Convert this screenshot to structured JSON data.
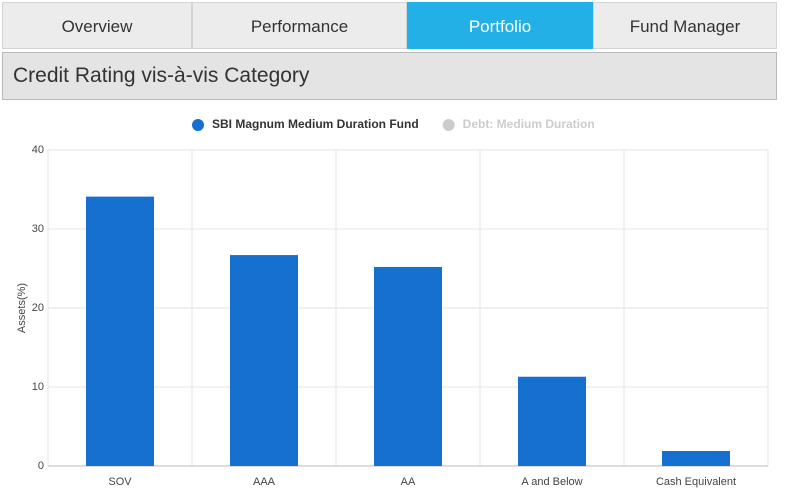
{
  "tabs": [
    {
      "label": "Overview",
      "active": false
    },
    {
      "label": "Performance",
      "active": false
    },
    {
      "label": "Portfolio",
      "active": true
    },
    {
      "label": "Fund Manager",
      "active": false
    }
  ],
  "section": {
    "title": "Credit Rating vis-à-vis Category"
  },
  "chart_data": {
    "type": "bar",
    "ylabel": "Assets(%)",
    "categories": [
      "SOV",
      "AAA",
      "AA",
      "A and Below",
      "Cash Equivalent"
    ],
    "series": [
      {
        "name": "SBI Magnum Medium Duration Fund",
        "color": "#1570d0",
        "values": [
          34.1,
          26.7,
          25.2,
          11.3,
          1.9
        ]
      },
      {
        "name": "Debt: Medium Duration",
        "color": "#cccccc",
        "visible": false
      }
    ],
    "ylim": [
      0,
      40
    ],
    "yticks": [
      0,
      10,
      20,
      30,
      40
    ],
    "grid": true
  }
}
